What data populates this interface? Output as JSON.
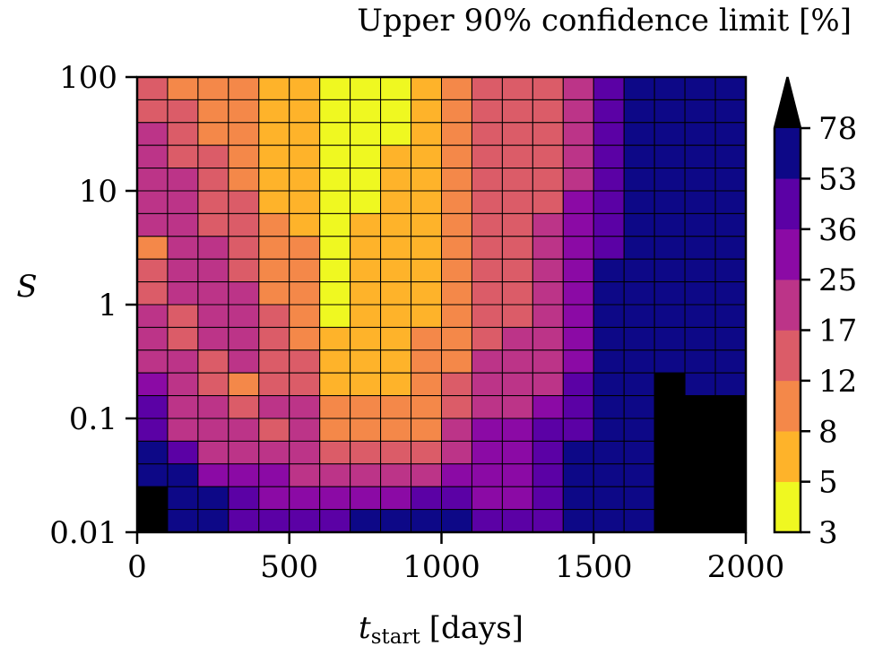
{
  "chart_data": {
    "type": "heatmap",
    "colorbar_title": "Upper 90% confidence limit [%]",
    "xlabel_main": "t",
    "xlabel_sub": "start",
    "xlabel_unit": "[days]",
    "ylabel": "S",
    "x_range": [
      0,
      2000
    ],
    "x_ticks": [
      "0",
      "500",
      "1000",
      "1500",
      "2000"
    ],
    "x_tick_values": [
      0,
      500,
      1000,
      1500,
      2000
    ],
    "y_scale": "log",
    "y_range": [
      0.01,
      100
    ],
    "y_ticks": [
      "0.01",
      "0.1",
      "1",
      "10",
      "100"
    ],
    "y_tick_values": [
      0.01,
      0.1,
      1,
      10,
      100
    ],
    "x_bin_edges": [
      0,
      100,
      200,
      300,
      400,
      500,
      600,
      700,
      800,
      900,
      1000,
      1100,
      1200,
      1300,
      1400,
      1500,
      1600,
      1700,
      1800,
      1900,
      2000
    ],
    "n_rows": 20,
    "levels": [
      "3",
      "5",
      "8",
      "12",
      "17",
      "25",
      "36",
      "53",
      "78"
    ],
    "level_colors": [
      "#eff821",
      "#feb32a",
      "#f48849",
      "#db5c68",
      "#bc3488",
      "#8b0aa5",
      "#5b01a5",
      "#0d0887"
    ],
    "over_color": "#000000",
    "grid": "z_rows_top_to_bottom; values are color-band index (0 = 3-5%, 7 = 53-78%, 8 = above 78%)",
    "z": [
      [
        3,
        2,
        2,
        2,
        1,
        1,
        0,
        0,
        0,
        1,
        2,
        3,
        3,
        3,
        4,
        6,
        7,
        7,
        7,
        7
      ],
      [
        3,
        3,
        2,
        2,
        1,
        1,
        0,
        0,
        0,
        1,
        2,
        3,
        3,
        3,
        4,
        6,
        7,
        7,
        7,
        7
      ],
      [
        4,
        3,
        2,
        2,
        1,
        1,
        0,
        0,
        0,
        1,
        2,
        3,
        3,
        3,
        4,
        6,
        7,
        7,
        7,
        7
      ],
      [
        4,
        3,
        3,
        2,
        1,
        1,
        0,
        0,
        1,
        1,
        2,
        3,
        3,
        3,
        4,
        6,
        7,
        7,
        7,
        7
      ],
      [
        4,
        4,
        3,
        2,
        1,
        1,
        0,
        0,
        1,
        1,
        2,
        3,
        3,
        3,
        4,
        6,
        7,
        7,
        7,
        7
      ],
      [
        4,
        4,
        3,
        3,
        1,
        1,
        0,
        0,
        1,
        1,
        2,
        3,
        3,
        3,
        5,
        6,
        7,
        7,
        7,
        7
      ],
      [
        4,
        4,
        3,
        3,
        2,
        1,
        0,
        1,
        1,
        1,
        2,
        3,
        3,
        4,
        5,
        6,
        7,
        7,
        7,
        7
      ],
      [
        2,
        4,
        4,
        3,
        2,
        2,
        0,
        1,
        1,
        1,
        2,
        3,
        3,
        4,
        5,
        6,
        7,
        7,
        7,
        7
      ],
      [
        3,
        4,
        4,
        3,
        2,
        2,
        0,
        1,
        1,
        1,
        2,
        3,
        3,
        4,
        5,
        7,
        7,
        7,
        7,
        7
      ],
      [
        3,
        4,
        4,
        4,
        2,
        2,
        0,
        1,
        1,
        1,
        2,
        3,
        3,
        4,
        5,
        7,
        7,
        7,
        7,
        7
      ],
      [
        4,
        3,
        4,
        4,
        3,
        2,
        0,
        1,
        1,
        1,
        2,
        3,
        3,
        4,
        5,
        7,
        7,
        7,
        7,
        7
      ],
      [
        4,
        3,
        4,
        4,
        3,
        2,
        1,
        1,
        1,
        2,
        2,
        3,
        4,
        4,
        5,
        7,
        7,
        7,
        7,
        7
      ],
      [
        4,
        4,
        3,
        4,
        3,
        3,
        1,
        1,
        1,
        2,
        2,
        4,
        4,
        4,
        5,
        7,
        7,
        7,
        7,
        7
      ],
      [
        5,
        4,
        3,
        2,
        3,
        3,
        1,
        1,
        1,
        2,
        3,
        4,
        4,
        4,
        6,
        7,
        7,
        8,
        7,
        7
      ],
      [
        6,
        4,
        4,
        3,
        4,
        4,
        2,
        2,
        2,
        2,
        3,
        4,
        4,
        5,
        6,
        7,
        7,
        8,
        8,
        8
      ],
      [
        6,
        4,
        4,
        4,
        3,
        4,
        2,
        2,
        2,
        2,
        4,
        5,
        5,
        6,
        6,
        7,
        7,
        8,
        8,
        8
      ],
      [
        7,
        6,
        4,
        4,
        4,
        4,
        3,
        3,
        3,
        3,
        4,
        5,
        5,
        6,
        7,
        7,
        7,
        8,
        8,
        8
      ],
      [
        7,
        7,
        5,
        5,
        5,
        4,
        4,
        4,
        4,
        4,
        5,
        5,
        5,
        6,
        7,
        7,
        7,
        8,
        8,
        8
      ],
      [
        8,
        7,
        7,
        6,
        5,
        5,
        5,
        5,
        5,
        6,
        6,
        5,
        5,
        6,
        7,
        7,
        7,
        8,
        8,
        8
      ],
      [
        8,
        7,
        7,
        6,
        6,
        6,
        6,
        7,
        7,
        7,
        7,
        6,
        6,
        6,
        7,
        7,
        7,
        8,
        8,
        8
      ]
    ]
  }
}
